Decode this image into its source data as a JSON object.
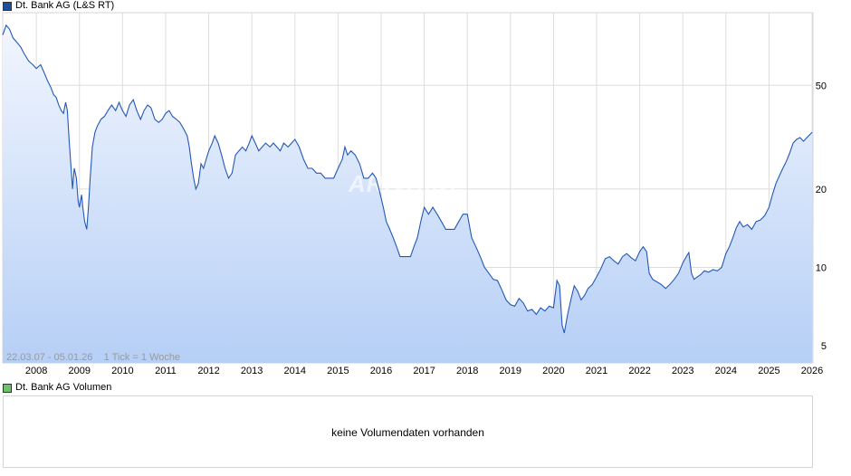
{
  "legend": {
    "price_label": "Dt. Bank AG (L&S RT)",
    "price_color": "#1f4e9e",
    "volume_label": "Dt. Bank AG Volumen",
    "volume_color": "#6cc36c"
  },
  "range_info": "22.03.07 - 05.01.26    1 Tick = 1 Woche",
  "watermark": "ARIVA.DE",
  "volume_panel": {
    "message": "keine Volumendaten vorhanden"
  },
  "colors": {
    "line": "#2358b8",
    "fill_top": "#f2f6fe",
    "fill_bottom": "#b6cff6",
    "grid": "#dddddd"
  },
  "chart_data": {
    "type": "line",
    "scale": "log",
    "ylim": [
      4.3,
      95
    ],
    "xlim": [
      2007.22,
      2026.02
    ],
    "x_ticks": [
      "2008",
      "2009",
      "2010",
      "2011",
      "2012",
      "2013",
      "2014",
      "2015",
      "2016",
      "2017",
      "2018",
      "2019",
      "2020",
      "2021",
      "2022",
      "2023",
      "2024",
      "2025",
      "2026"
    ],
    "y_ticks": [
      5,
      10,
      20,
      50
    ],
    "series": [
      {
        "name": "Dt. Bank AG (L&S RT)",
        "points": [
          [
            2007.22,
            78
          ],
          [
            2007.3,
            85
          ],
          [
            2007.38,
            82
          ],
          [
            2007.46,
            76
          ],
          [
            2007.55,
            73
          ],
          [
            2007.64,
            70
          ],
          [
            2007.72,
            66
          ],
          [
            2007.82,
            62
          ],
          [
            2007.92,
            60
          ],
          [
            2008.0,
            58
          ],
          [
            2008.1,
            60
          ],
          [
            2008.18,
            56
          ],
          [
            2008.26,
            52
          ],
          [
            2008.34,
            49
          ],
          [
            2008.4,
            46
          ],
          [
            2008.46,
            45
          ],
          [
            2008.52,
            42
          ],
          [
            2008.58,
            40
          ],
          [
            2008.63,
            39
          ],
          [
            2008.68,
            43
          ],
          [
            2008.72,
            40
          ],
          [
            2008.76,
            31
          ],
          [
            2008.8,
            25
          ],
          [
            2008.84,
            20
          ],
          [
            2008.88,
            24
          ],
          [
            2008.93,
            22
          ],
          [
            2008.97,
            18
          ],
          [
            2009.0,
            17
          ],
          [
            2009.05,
            19
          ],
          [
            2009.08,
            17
          ],
          [
            2009.12,
            15
          ],
          [
            2009.17,
            14
          ],
          [
            2009.21,
            17
          ],
          [
            2009.25,
            22
          ],
          [
            2009.3,
            29
          ],
          [
            2009.36,
            33
          ],
          [
            2009.42,
            35
          ],
          [
            2009.5,
            37
          ],
          [
            2009.58,
            38
          ],
          [
            2009.66,
            40
          ],
          [
            2009.75,
            42
          ],
          [
            2009.84,
            40
          ],
          [
            2009.92,
            43
          ],
          [
            2010.0,
            40
          ],
          [
            2010.08,
            38
          ],
          [
            2010.16,
            42
          ],
          [
            2010.25,
            44
          ],
          [
            2010.33,
            40
          ],
          [
            2010.42,
            37
          ],
          [
            2010.5,
            40
          ],
          [
            2010.58,
            42
          ],
          [
            2010.66,
            41
          ],
          [
            2010.75,
            37
          ],
          [
            2010.84,
            36
          ],
          [
            2010.92,
            37
          ],
          [
            2011.0,
            39
          ],
          [
            2011.08,
            40
          ],
          [
            2011.16,
            38
          ],
          [
            2011.25,
            37
          ],
          [
            2011.33,
            36
          ],
          [
            2011.42,
            34
          ],
          [
            2011.5,
            32
          ],
          [
            2011.55,
            29
          ],
          [
            2011.6,
            25
          ],
          [
            2011.65,
            22
          ],
          [
            2011.7,
            20
          ],
          [
            2011.76,
            21
          ],
          [
            2011.82,
            25
          ],
          [
            2011.88,
            24
          ],
          [
            2011.94,
            26
          ],
          [
            2012.0,
            28
          ],
          [
            2012.08,
            30
          ],
          [
            2012.14,
            32
          ],
          [
            2012.22,
            30
          ],
          [
            2012.3,
            27
          ],
          [
            2012.38,
            24
          ],
          [
            2012.46,
            22
          ],
          [
            2012.54,
            23
          ],
          [
            2012.62,
            27
          ],
          [
            2012.7,
            28
          ],
          [
            2012.78,
            29
          ],
          [
            2012.86,
            28
          ],
          [
            2012.94,
            30
          ],
          [
            2013.0,
            32
          ],
          [
            2013.08,
            30
          ],
          [
            2013.16,
            28
          ],
          [
            2013.24,
            29
          ],
          [
            2013.32,
            30
          ],
          [
            2013.42,
            29
          ],
          [
            2013.5,
            30
          ],
          [
            2013.58,
            29
          ],
          [
            2013.66,
            28
          ],
          [
            2013.74,
            30
          ],
          [
            2013.84,
            29
          ],
          [
            2013.92,
            30
          ],
          [
            2014.0,
            31
          ],
          [
            2014.1,
            29
          ],
          [
            2014.2,
            26
          ],
          [
            2014.3,
            24
          ],
          [
            2014.4,
            24
          ],
          [
            2014.5,
            23
          ],
          [
            2014.6,
            23
          ],
          [
            2014.7,
            22
          ],
          [
            2014.8,
            22
          ],
          [
            2014.9,
            22
          ],
          [
            2015.0,
            24
          ],
          [
            2015.1,
            26
          ],
          [
            2015.16,
            29
          ],
          [
            2015.22,
            27
          ],
          [
            2015.3,
            28
          ],
          [
            2015.4,
            27
          ],
          [
            2015.5,
            25
          ],
          [
            2015.6,
            22
          ],
          [
            2015.7,
            22
          ],
          [
            2015.8,
            23
          ],
          [
            2015.88,
            22
          ],
          [
            2015.95,
            20
          ],
          [
            2016.05,
            17
          ],
          [
            2016.12,
            15
          ],
          [
            2016.2,
            14
          ],
          [
            2016.28,
            13
          ],
          [
            2016.36,
            12
          ],
          [
            2016.44,
            11
          ],
          [
            2016.52,
            11
          ],
          [
            2016.6,
            11
          ],
          [
            2016.68,
            11
          ],
          [
            2016.76,
            12
          ],
          [
            2016.84,
            13
          ],
          [
            2016.92,
            15
          ],
          [
            2017.0,
            17
          ],
          [
            2017.1,
            16
          ],
          [
            2017.2,
            17
          ],
          [
            2017.3,
            16
          ],
          [
            2017.4,
            15
          ],
          [
            2017.5,
            14
          ],
          [
            2017.6,
            14
          ],
          [
            2017.7,
            14
          ],
          [
            2017.8,
            15
          ],
          [
            2017.9,
            16
          ],
          [
            2018.0,
            16
          ],
          [
            2018.1,
            13
          ],
          [
            2018.2,
            12
          ],
          [
            2018.3,
            11
          ],
          [
            2018.4,
            10
          ],
          [
            2018.5,
            9.5
          ],
          [
            2018.6,
            9.0
          ],
          [
            2018.7,
            8.9
          ],
          [
            2018.8,
            8.2
          ],
          [
            2018.9,
            7.5
          ],
          [
            2019.0,
            7.2
          ],
          [
            2019.1,
            7.1
          ],
          [
            2019.2,
            7.6
          ],
          [
            2019.3,
            7.3
          ],
          [
            2019.4,
            6.8
          ],
          [
            2019.5,
            6.9
          ],
          [
            2019.6,
            6.6
          ],
          [
            2019.7,
            7.0
          ],
          [
            2019.8,
            6.8
          ],
          [
            2019.9,
            7.1
          ],
          [
            2020.0,
            7.0
          ],
          [
            2020.08,
            8.9
          ],
          [
            2020.14,
            8.5
          ],
          [
            2020.2,
            6.0
          ],
          [
            2020.25,
            5.6
          ],
          [
            2020.32,
            6.5
          ],
          [
            2020.4,
            7.5
          ],
          [
            2020.48,
            8.5
          ],
          [
            2020.56,
            8.1
          ],
          [
            2020.64,
            7.5
          ],
          [
            2020.72,
            7.8
          ],
          [
            2020.8,
            8.3
          ],
          [
            2020.9,
            8.6
          ],
          [
            2021.0,
            9.2
          ],
          [
            2021.1,
            9.9
          ],
          [
            2021.2,
            10.8
          ],
          [
            2021.3,
            11.0
          ],
          [
            2021.4,
            10.6
          ],
          [
            2021.5,
            10.3
          ],
          [
            2021.6,
            11.0
          ],
          [
            2021.7,
            11.3
          ],
          [
            2021.8,
            10.9
          ],
          [
            2021.9,
            10.6
          ],
          [
            2022.0,
            11.5
          ],
          [
            2022.08,
            12.0
          ],
          [
            2022.16,
            11.5
          ],
          [
            2022.22,
            9.5
          ],
          [
            2022.3,
            9.0
          ],
          [
            2022.4,
            8.8
          ],
          [
            2022.5,
            8.6
          ],
          [
            2022.6,
            8.3
          ],
          [
            2022.7,
            8.6
          ],
          [
            2022.8,
            9.0
          ],
          [
            2022.9,
            9.5
          ],
          [
            2023.0,
            10.4
          ],
          [
            2023.08,
            11.0
          ],
          [
            2023.14,
            11.4
          ],
          [
            2023.2,
            9.5
          ],
          [
            2023.26,
            9.0
          ],
          [
            2023.34,
            9.2
          ],
          [
            2023.42,
            9.4
          ],
          [
            2023.5,
            9.7
          ],
          [
            2023.6,
            9.6
          ],
          [
            2023.7,
            9.8
          ],
          [
            2023.8,
            9.7
          ],
          [
            2023.9,
            10.0
          ],
          [
            2024.0,
            11.3
          ],
          [
            2024.08,
            12.0
          ],
          [
            2024.16,
            13.0
          ],
          [
            2024.24,
            14.2
          ],
          [
            2024.32,
            15.0
          ],
          [
            2024.4,
            14.3
          ],
          [
            2024.5,
            14.6
          ],
          [
            2024.6,
            14.0
          ],
          [
            2024.7,
            15.0
          ],
          [
            2024.8,
            15.2
          ],
          [
            2024.9,
            15.8
          ],
          [
            2025.0,
            17.0
          ],
          [
            2025.08,
            19.0
          ],
          [
            2025.16,
            21.0
          ],
          [
            2025.24,
            22.5
          ],
          [
            2025.32,
            24.0
          ],
          [
            2025.4,
            25.5
          ],
          [
            2025.48,
            27.5
          ],
          [
            2025.56,
            30.0
          ],
          [
            2025.64,
            31.0
          ],
          [
            2025.72,
            31.5
          ],
          [
            2025.8,
            30.5
          ],
          [
            2025.88,
            31.5
          ],
          [
            2025.96,
            32.5
          ],
          [
            2026.0,
            33.0
          ]
        ]
      }
    ]
  }
}
